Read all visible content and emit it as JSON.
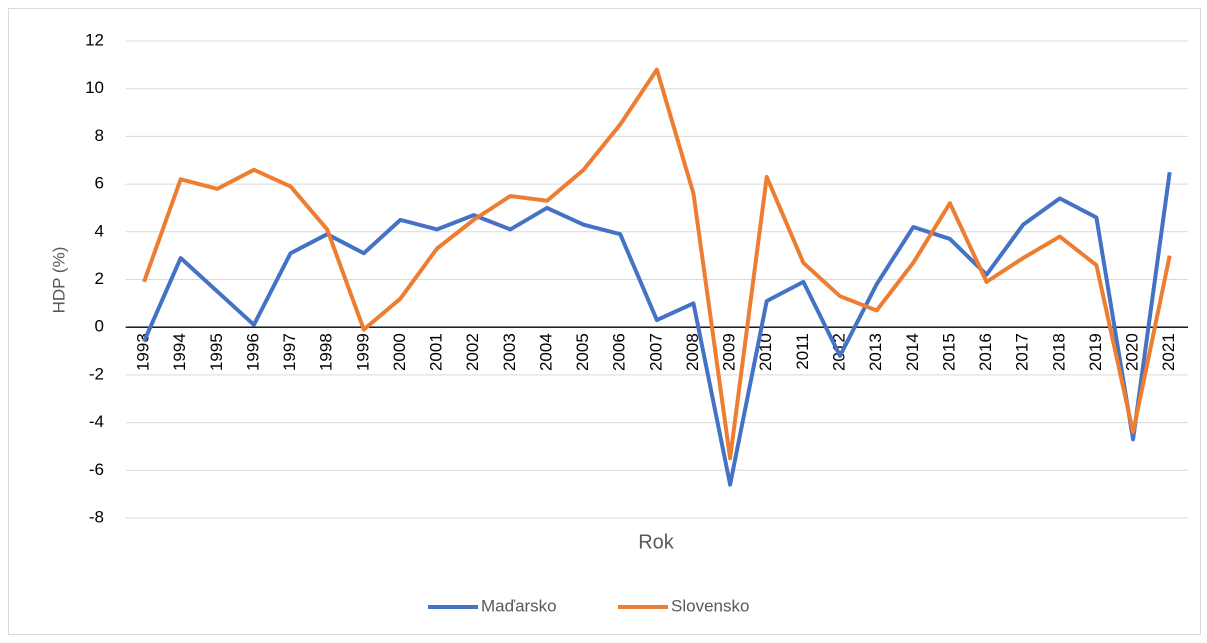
{
  "chart_data": {
    "type": "line",
    "y_label": "HDP (%)",
    "x_label": "Rok",
    "categories": [
      "1993",
      "1994",
      "1995",
      "1996",
      "1997",
      "1998",
      "1999",
      "2000",
      "2001",
      "2002",
      "2003",
      "2004",
      "2005",
      "2006",
      "2007",
      "2008",
      "2009",
      "2010",
      "2011",
      "2012",
      "2013",
      "2014",
      "2015",
      "2016",
      "2017",
      "2018",
      "2019",
      "2020",
      "2021"
    ],
    "series": [
      {
        "name": "Maďarsko",
        "color": "#4472c4",
        "values": [
          -0.6,
          2.9,
          1.5,
          0.1,
          3.1,
          3.9,
          3.1,
          4.5,
          4.1,
          4.7,
          4.1,
          5.0,
          4.3,
          3.9,
          0.3,
          1.0,
          -6.6,
          1.1,
          1.9,
          -1.2,
          1.8,
          4.2,
          3.7,
          2.2,
          4.3,
          5.4,
          4.6,
          -4.7,
          6.5
        ]
      },
      {
        "name": "Slovensko",
        "color": "#ed7d31",
        "values": [
          1.9,
          6.2,
          5.8,
          6.6,
          5.9,
          4.1,
          -0.1,
          1.2,
          3.3,
          4.5,
          5.5,
          5.3,
          6.6,
          8.5,
          10.8,
          5.6,
          -5.5,
          6.3,
          2.7,
          1.3,
          0.7,
          2.7,
          5.2,
          1.9,
          2.9,
          3.8,
          2.6,
          -4.4,
          3.0
        ]
      }
    ],
    "ylim": [
      -8,
      12
    ],
    "yticks": [
      -8,
      -6,
      -4,
      -2,
      0,
      2,
      4,
      6,
      8,
      10,
      12
    ],
    "grid": true,
    "legend": "bottom"
  }
}
